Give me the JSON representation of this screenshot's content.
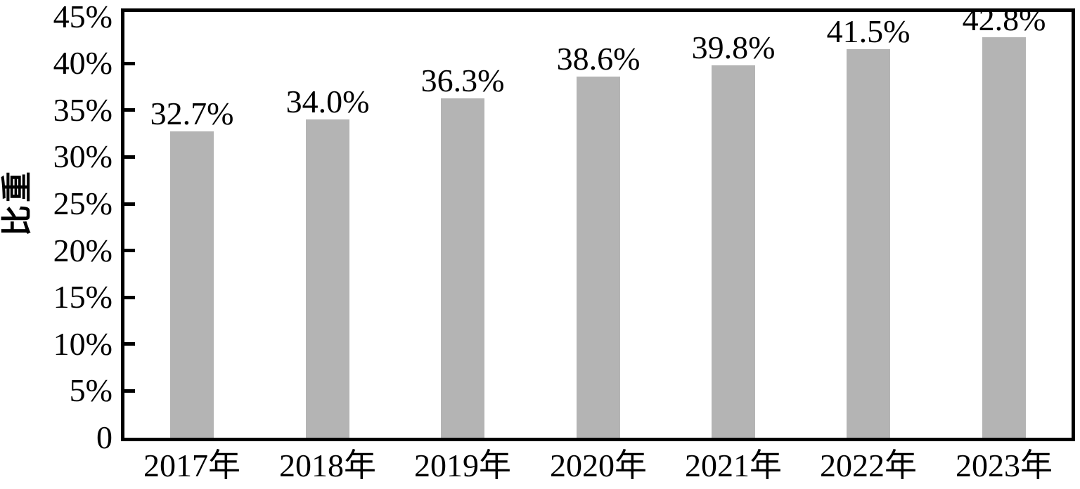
{
  "chart_data": {
    "type": "bar",
    "title": "",
    "ylabel": "比重",
    "xlabel": "",
    "categories": [
      "2017年",
      "2018年",
      "2019年",
      "2020年",
      "2021年",
      "2022年",
      "2023年"
    ],
    "values": [
      32.7,
      34.0,
      36.3,
      38.6,
      39.8,
      41.5,
      42.8
    ],
    "bar_labels": [
      "32.7%",
      "34.0%",
      "36.3%",
      "38.6%",
      "39.8%",
      "41.5%",
      "42.8%"
    ],
    "y_ticks": [
      {
        "label": "45%",
        "value": 45,
        "mark": false
      },
      {
        "label": "40%",
        "value": 40,
        "mark": true
      },
      {
        "label": "35%",
        "value": 35,
        "mark": true
      },
      {
        "label": "30%",
        "value": 30,
        "mark": true
      },
      {
        "label": "25%",
        "value": 25,
        "mark": true
      },
      {
        "label": "20%",
        "value": 20,
        "mark": true
      },
      {
        "label": "15%",
        "value": 15,
        "mark": true
      },
      {
        "label": "10%",
        "value": 10,
        "mark": true
      },
      {
        "label": "5%",
        "value": 5,
        "mark": true
      },
      {
        "label": "0",
        "value": 0,
        "mark": false
      }
    ],
    "ylim": [
      0,
      45.5
    ],
    "grid": false,
    "legend": "none",
    "colors": {
      "bar": "#b4b4b4",
      "axis": "#000000",
      "text": "#000000",
      "background": "#ffffff"
    }
  }
}
